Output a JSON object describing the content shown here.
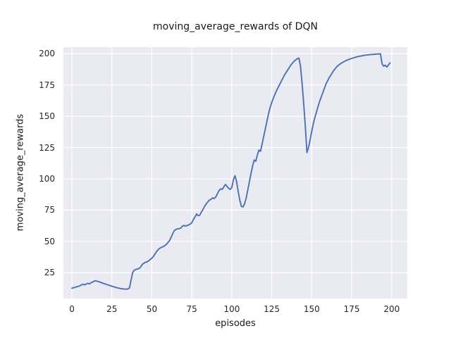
{
  "figure": {
    "title": "moving_average_rewards of DQN",
    "xlabel": "episodes",
    "ylabel": "moving_average_rewards"
  },
  "chart_data": {
    "type": "line",
    "title": "moving_average_rewards of DQN",
    "xlabel": "episodes",
    "ylabel": "moving_average_rewards",
    "x_ticks": [
      0,
      25,
      50,
      75,
      100,
      125,
      150,
      175,
      200
    ],
    "y_ticks": [
      25,
      50,
      75,
      100,
      125,
      150,
      175,
      200
    ],
    "xlim": [
      -5.3,
      209.8
    ],
    "ylim": [
      4.3,
      205.2
    ],
    "grid": true,
    "legend": false,
    "line_color": "#4c72b0",
    "axes_bg_color": "#eaeaf2",
    "grid_color": "#ffffff",
    "text_color": "#262626",
    "series": [
      {
        "name": "moving_average_rewards",
        "points": [
          [
            0,
            12.5
          ],
          [
            1,
            13
          ],
          [
            2,
            13.2
          ],
          [
            3,
            13.8
          ],
          [
            4,
            14
          ],
          [
            5,
            14.5
          ],
          [
            6,
            15.2
          ],
          [
            7,
            15.8
          ],
          [
            8,
            15.2
          ],
          [
            9,
            16
          ],
          [
            10,
            16.5
          ],
          [
            11,
            16
          ],
          [
            12,
            17
          ],
          [
            13,
            17.5
          ],
          [
            14,
            18.3
          ],
          [
            15,
            18.5
          ],
          [
            16,
            18
          ],
          [
            17,
            17.8
          ],
          [
            18,
            17.2
          ],
          [
            19,
            16.8
          ],
          [
            20,
            16.3
          ],
          [
            21,
            15.9
          ],
          [
            22,
            15.4
          ],
          [
            23,
            15
          ],
          [
            24,
            14.6
          ],
          [
            25,
            14.2
          ],
          [
            26,
            13.8
          ],
          [
            27,
            13.4
          ],
          [
            28,
            13
          ],
          [
            29,
            12.7
          ],
          [
            30,
            12.4
          ],
          [
            31,
            12.2
          ],
          [
            32,
            12
          ],
          [
            33,
            11.9
          ],
          [
            34,
            11.8
          ],
          [
            35,
            12
          ],
          [
            36,
            12.8
          ],
          [
            37,
            19
          ],
          [
            38,
            25
          ],
          [
            39,
            27
          ],
          [
            40,
            27.5
          ],
          [
            41,
            28
          ],
          [
            42,
            28.3
          ],
          [
            43,
            29.5
          ],
          [
            44,
            31.5
          ],
          [
            45,
            32.5
          ],
          [
            46,
            33.3
          ],
          [
            47,
            33.6
          ],
          [
            48,
            34.5
          ],
          [
            49,
            35.5
          ],
          [
            50,
            36.5
          ],
          [
            51,
            38
          ],
          [
            52,
            40
          ],
          [
            53,
            42
          ],
          [
            54,
            43.5
          ],
          [
            55,
            44.5
          ],
          [
            56,
            45.2
          ],
          [
            57,
            45.8
          ],
          [
            58,
            46.5
          ],
          [
            59,
            47.5
          ],
          [
            60,
            49
          ],
          [
            61,
            50.5
          ],
          [
            62,
            53
          ],
          [
            63,
            56
          ],
          [
            64,
            58.5
          ],
          [
            65,
            59.5
          ],
          [
            66,
            60
          ],
          [
            67,
            60.2
          ],
          [
            68,
            60.5
          ],
          [
            69,
            62
          ],
          [
            70,
            62.8
          ],
          [
            71,
            62.2
          ],
          [
            72,
            62.6
          ],
          [
            73,
            63.2
          ],
          [
            74,
            63.8
          ],
          [
            75,
            65
          ],
          [
            76,
            67.5
          ],
          [
            77,
            69.5
          ],
          [
            78,
            72
          ],
          [
            79,
            70.5
          ],
          [
            80,
            71
          ],
          [
            81,
            73.5
          ],
          [
            82,
            75.5
          ],
          [
            83,
            78
          ],
          [
            84,
            80
          ],
          [
            85,
            81.5
          ],
          [
            86,
            83
          ],
          [
            87,
            83.5
          ],
          [
            88,
            84.8
          ],
          [
            89,
            84.2
          ],
          [
            90,
            85.5
          ],
          [
            91,
            88
          ],
          [
            92,
            90.5
          ],
          [
            93,
            92
          ],
          [
            94,
            91.5
          ],
          [
            95,
            93.5
          ],
          [
            96,
            95.5
          ],
          [
            97,
            94
          ],
          [
            98,
            92.5
          ],
          [
            99,
            91.5
          ],
          [
            100,
            93
          ],
          [
            101,
            99
          ],
          [
            102,
            102.5
          ],
          [
            103,
            98
          ],
          [
            104,
            90
          ],
          [
            105,
            83
          ],
          [
            106,
            78
          ],
          [
            107,
            77.5
          ],
          [
            108,
            80
          ],
          [
            109,
            84.5
          ],
          [
            110,
            91
          ],
          [
            111,
            97.5
          ],
          [
            112,
            104
          ],
          [
            113,
            110
          ],
          [
            114,
            115
          ],
          [
            115,
            114
          ],
          [
            116,
            119
          ],
          [
            117,
            123
          ],
          [
            118,
            122
          ],
          [
            119,
            128
          ],
          [
            120,
            134
          ],
          [
            121,
            140
          ],
          [
            122,
            146
          ],
          [
            123,
            152
          ],
          [
            124,
            157
          ],
          [
            125,
            161
          ],
          [
            126,
            164.5
          ],
          [
            127,
            167.5
          ],
          [
            128,
            170.5
          ],
          [
            129,
            173
          ],
          [
            130,
            175.5
          ],
          [
            131,
            178
          ],
          [
            132,
            180.5
          ],
          [
            133,
            183
          ],
          [
            134,
            185
          ],
          [
            135,
            187
          ],
          [
            136,
            189
          ],
          [
            137,
            191
          ],
          [
            138,
            192.5
          ],
          [
            139,
            194
          ],
          [
            140,
            195
          ],
          [
            141,
            196
          ],
          [
            142,
            196.5
          ],
          [
            143,
            190
          ],
          [
            144,
            176
          ],
          [
            145,
            160
          ],
          [
            146,
            142
          ],
          [
            147,
            121
          ],
          [
            148,
            125
          ],
          [
            149,
            131
          ],
          [
            150,
            138
          ],
          [
            151,
            144
          ],
          [
            152,
            149
          ],
          [
            153,
            153.5
          ],
          [
            154,
            158
          ],
          [
            155,
            162
          ],
          [
            156,
            165.5
          ],
          [
            157,
            169
          ],
          [
            158,
            172.5
          ],
          [
            159,
            176
          ],
          [
            160,
            178.5
          ],
          [
            161,
            181
          ],
          [
            162,
            183
          ],
          [
            163,
            185
          ],
          [
            164,
            187
          ],
          [
            165,
            188.5
          ],
          [
            166,
            190
          ],
          [
            167,
            191
          ],
          [
            168,
            192
          ],
          [
            169,
            192.8
          ],
          [
            170,
            193.5
          ],
          [
            171,
            194.2
          ],
          [
            172,
            194.8
          ],
          [
            173,
            195.3
          ],
          [
            174,
            195.8
          ],
          [
            175,
            196.2
          ],
          [
            176,
            196.6
          ],
          [
            177,
            197
          ],
          [
            178,
            197.4
          ],
          [
            179,
            197.7
          ],
          [
            180,
            198
          ],
          [
            181,
            198.2
          ],
          [
            182,
            198.5
          ],
          [
            183,
            198.7
          ],
          [
            184,
            198.9
          ],
          [
            185,
            199
          ],
          [
            186,
            199.2
          ],
          [
            187,
            199.3
          ],
          [
            188,
            199.4
          ],
          [
            189,
            199.5
          ],
          [
            190,
            199.6
          ],
          [
            191,
            199.7
          ],
          [
            192,
            199.8
          ],
          [
            193,
            199.9
          ],
          [
            194,
            192
          ],
          [
            195,
            190
          ],
          [
            196,
            190.8
          ],
          [
            197,
            189.3
          ],
          [
            198,
            191
          ],
          [
            199,
            192.7
          ]
        ]
      }
    ]
  }
}
